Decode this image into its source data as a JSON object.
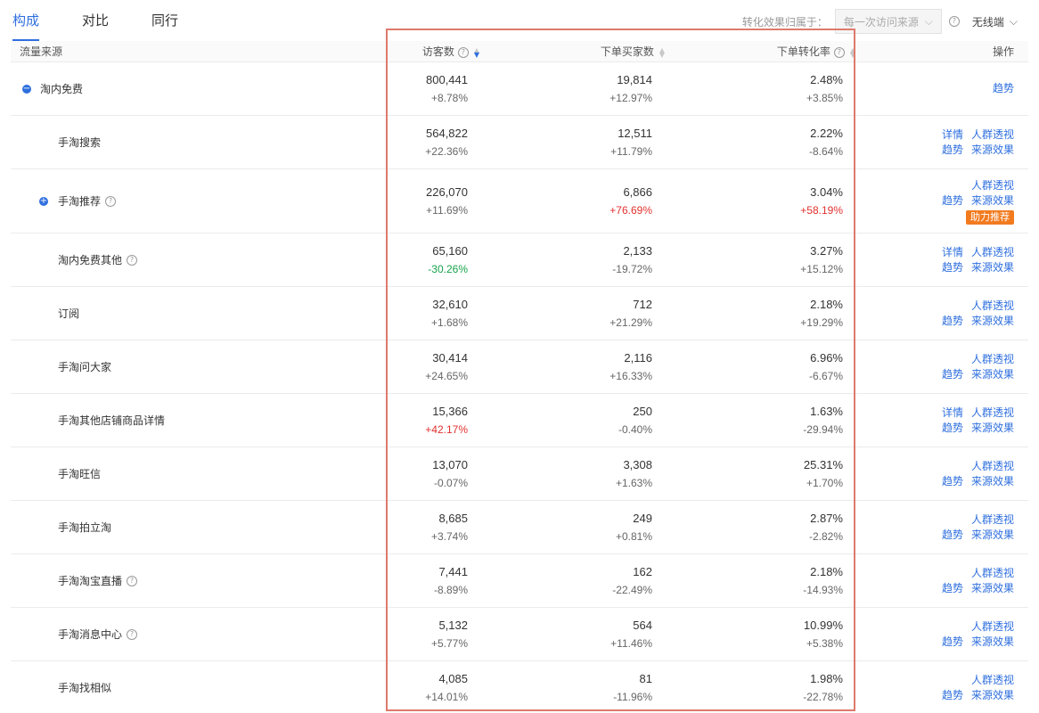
{
  "tabs": [
    "构成",
    "对比",
    "同行"
  ],
  "attribution": {
    "label": "转化效果归属于：",
    "value": "每一次访问来源",
    "device": "无线端"
  },
  "columns": {
    "source": "流量来源",
    "visitors": "访客数",
    "buyers": "下单买家数",
    "rate": "下单转化率",
    "ops": "操作"
  },
  "actions": {
    "detail": "详情",
    "crowd": "人群透视",
    "trend": "趋势",
    "effect": "来源效果",
    "boost": "助力推荐"
  },
  "rows": [
    {
      "name": "淘内免费",
      "visitors": "800,441",
      "visitors_chg": "+8.78%",
      "buyers": "19,814",
      "buyers_chg": "+12.97%",
      "rate": "2.48%",
      "rate_chg": "+3.85%"
    },
    {
      "name": "手淘搜索",
      "visitors": "564,822",
      "visitors_chg": "+22.36%",
      "buyers": "12,511",
      "buyers_chg": "+11.79%",
      "rate": "2.22%",
      "rate_chg": "-8.64%"
    },
    {
      "name": "手淘推荐",
      "visitors": "226,070",
      "visitors_chg": "+11.69%",
      "buyers": "6,866",
      "buyers_chg": "+76.69%",
      "rate": "3.04%",
      "rate_chg": "+58.19%"
    },
    {
      "name": "淘内免费其他",
      "visitors": "65,160",
      "visitors_chg": "-30.26%",
      "buyers": "2,133",
      "buyers_chg": "-19.72%",
      "rate": "3.27%",
      "rate_chg": "+15.12%"
    },
    {
      "name": "订阅",
      "visitors": "32,610",
      "visitors_chg": "+1.68%",
      "buyers": "712",
      "buyers_chg": "+21.29%",
      "rate": "2.18%",
      "rate_chg": "+19.29%"
    },
    {
      "name": "手淘问大家",
      "visitors": "30,414",
      "visitors_chg": "+24.65%",
      "buyers": "2,116",
      "buyers_chg": "+16.33%",
      "rate": "6.96%",
      "rate_chg": "-6.67%"
    },
    {
      "name": "手淘其他店铺商品详情",
      "visitors": "15,366",
      "visitors_chg": "+42.17%",
      "buyers": "250",
      "buyers_chg": "-0.40%",
      "rate": "1.63%",
      "rate_chg": "-29.94%"
    },
    {
      "name": "手淘旺信",
      "visitors": "13,070",
      "visitors_chg": "-0.07%",
      "buyers": "3,308",
      "buyers_chg": "+1.63%",
      "rate": "25.31%",
      "rate_chg": "+1.70%"
    },
    {
      "name": "手淘拍立淘",
      "visitors": "8,685",
      "visitors_chg": "+3.74%",
      "buyers": "249",
      "buyers_chg": "+0.81%",
      "rate": "2.87%",
      "rate_chg": "-2.82%"
    },
    {
      "name": "手淘淘宝直播",
      "visitors": "7,441",
      "visitors_chg": "-8.89%",
      "buyers": "162",
      "buyers_chg": "-22.49%",
      "rate": "2.18%",
      "rate_chg": "-14.93%"
    },
    {
      "name": "手淘消息中心",
      "visitors": "5,132",
      "visitors_chg": "+5.77%",
      "buyers": "564",
      "buyers_chg": "+11.46%",
      "rate": "10.99%",
      "rate_chg": "+5.38%"
    },
    {
      "name": "手淘找相似",
      "visitors": "4,085",
      "visitors_chg": "+14.01%",
      "buyers": "81",
      "buyers_chg": "-11.96%",
      "rate": "1.98%",
      "rate_chg": "-22.78%"
    }
  ]
}
